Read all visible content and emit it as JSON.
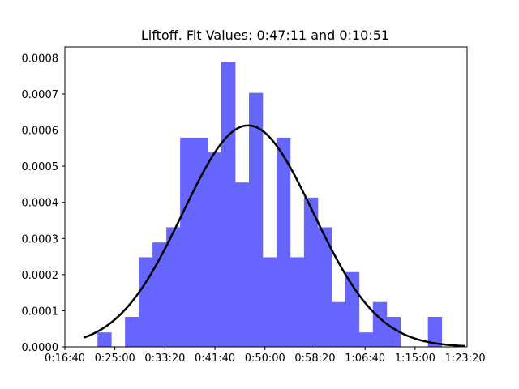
{
  "chart_data": {
    "type": "bar",
    "title": "Liftoff. Fit Values: 0:47:11 and 0:10:51",
    "xlabel": "",
    "ylabel": "",
    "x_unit": "seconds",
    "xlim": [
      1000,
      5020
    ],
    "ylim": [
      0,
      0.00083
    ],
    "x_ticks": [
      {
        "value": 1000,
        "label": "0:16:40"
      },
      {
        "value": 1500,
        "label": "0:25:00"
      },
      {
        "value": 2000,
        "label": "0:33:20"
      },
      {
        "value": 2500,
        "label": "0:41:40"
      },
      {
        "value": 3000,
        "label": "0:50:00"
      },
      {
        "value": 3500,
        "label": "0:58:20"
      },
      {
        "value": 4000,
        "label": "1:06:40"
      },
      {
        "value": 4500,
        "label": "1:15:00"
      },
      {
        "value": 5000,
        "label": "1:23:20"
      }
    ],
    "y_ticks": [
      {
        "value": 0,
        "label": "0.0000"
      },
      {
        "value": 0.0001,
        "label": "0.0001"
      },
      {
        "value": 0.0002,
        "label": "0.0002"
      },
      {
        "value": 0.0003,
        "label": "0.0003"
      },
      {
        "value": 0.0004,
        "label": "0.0004"
      },
      {
        "value": 0.0005,
        "label": "0.0005"
      },
      {
        "value": 0.0006,
        "label": "0.0006"
      },
      {
        "value": 0.0007,
        "label": "0.0007"
      },
      {
        "value": 0.0008,
        "label": "0.0008"
      }
    ],
    "histogram": {
      "color": "#6666ff",
      "bins": [
        {
          "x0": 1326,
          "x1": 1464,
          "value": 4e-05
        },
        {
          "x0": 1464,
          "x1": 1601,
          "value": 0.0
        },
        {
          "x0": 1601,
          "x1": 1739,
          "value": 8.3e-05
        },
        {
          "x0": 1739,
          "x1": 1876,
          "value": 0.000248
        },
        {
          "x0": 1876,
          "x1": 2014,
          "value": 0.000289
        },
        {
          "x0": 2014,
          "x1": 2152,
          "value": 0.000331
        },
        {
          "x0": 2152,
          "x1": 2289,
          "value": 0.000579
        },
        {
          "x0": 2289,
          "x1": 2427,
          "value": 0.000579
        },
        {
          "x0": 2427,
          "x1": 2564,
          "value": 0.000538
        },
        {
          "x0": 2564,
          "x1": 2702,
          "value": 0.000789
        },
        {
          "x0": 2702,
          "x1": 2840,
          "value": 0.000455
        },
        {
          "x0": 2840,
          "x1": 2977,
          "value": 0.000703
        },
        {
          "x0": 2977,
          "x1": 3115,
          "value": 0.000248
        },
        {
          "x0": 3115,
          "x1": 3252,
          "value": 0.000579
        },
        {
          "x0": 3252,
          "x1": 3390,
          "value": 0.000248
        },
        {
          "x0": 3390,
          "x1": 3528,
          "value": 0.000413
        },
        {
          "x0": 3528,
          "x1": 3665,
          "value": 0.000331
        },
        {
          "x0": 3665,
          "x1": 3803,
          "value": 0.000124
        },
        {
          "x0": 3803,
          "x1": 3940,
          "value": 0.000207
        },
        {
          "x0": 3940,
          "x1": 4078,
          "value": 4e-05
        },
        {
          "x0": 4078,
          "x1": 4216,
          "value": 0.000124
        },
        {
          "x0": 4216,
          "x1": 4353,
          "value": 8.3e-05
        },
        {
          "x0": 4353,
          "x1": 4491,
          "value": 0.0
        },
        {
          "x0": 4491,
          "x1": 4628,
          "value": 0.0
        },
        {
          "x0": 4628,
          "x1": 4766,
          "value": 8.3e-05
        }
      ]
    },
    "fit_curve": {
      "type": "normal",
      "mean": 2831,
      "std": 651,
      "x_range": [
        1190,
        5000
      ],
      "color": "#000000"
    },
    "grid": false
  }
}
